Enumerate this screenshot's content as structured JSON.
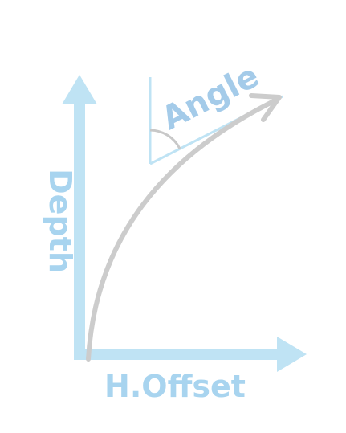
{
  "labels": {
    "depth": "Depth",
    "h_offset": "H.Offset",
    "angle": "Angle"
  },
  "colors": {
    "axis": "#bfe3f4",
    "axis_label": "#a8d4ef",
    "curve": "#cccccc",
    "angle_arc": "#c8c8c8",
    "angle_label": "#a4cbe9",
    "background": "#ffffff"
  }
}
